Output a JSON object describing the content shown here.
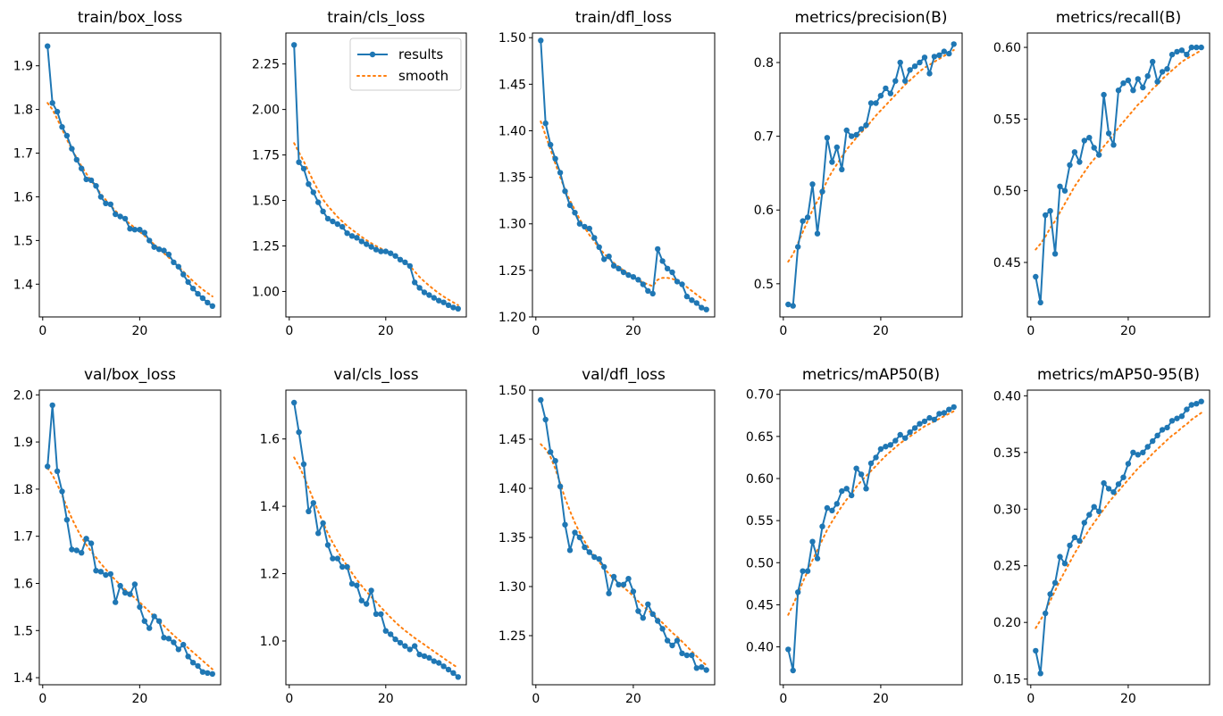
{
  "legend": {
    "results_label": "results",
    "smooth_label": "smooth",
    "placement": "upper right of train/cls_loss"
  },
  "colors": {
    "results": "#1f77b4",
    "smooth": "#ff7f0e",
    "axes": "#000000",
    "background": "#ffffff"
  },
  "x": [
    1,
    2,
    3,
    4,
    5,
    6,
    7,
    8,
    9,
    10,
    11,
    12,
    13,
    14,
    15,
    16,
    17,
    18,
    19,
    20,
    21,
    22,
    23,
    24,
    25,
    26,
    27,
    28,
    29,
    30,
    31,
    32,
    33,
    34,
    35
  ],
  "chart_data": [
    {
      "type": "line",
      "title": "train/box_loss",
      "xlim": [
        -0.7,
        36.7
      ],
      "ylim": [
        1.325,
        1.975
      ],
      "xticks": [
        0,
        20
      ],
      "yticks": [
        1.4,
        1.5,
        1.6,
        1.7,
        1.8,
        1.9
      ],
      "tick_decimals": 1,
      "grid": false,
      "legend": false,
      "series": [
        {
          "name": "results",
          "values": [
            1.945,
            1.815,
            1.795,
            1.76,
            1.74,
            1.71,
            1.685,
            1.665,
            1.64,
            1.638,
            1.625,
            1.6,
            1.585,
            1.583,
            1.56,
            1.555,
            1.55,
            1.527,
            1.525,
            1.525,
            1.518,
            1.5,
            1.485,
            1.48,
            1.477,
            1.468,
            1.45,
            1.44,
            1.422,
            1.405,
            1.39,
            1.378,
            1.368,
            1.358,
            1.35
          ]
        },
        {
          "name": "smooth",
          "values": [
            1.815,
            1.8,
            1.778,
            1.755,
            1.731,
            1.709,
            1.689,
            1.67,
            1.653,
            1.637,
            1.622,
            1.607,
            1.593,
            1.58,
            1.568,
            1.557,
            1.547,
            1.538,
            1.529,
            1.52,
            1.511,
            1.501,
            1.491,
            1.481,
            1.471,
            1.461,
            1.451,
            1.44,
            1.429,
            1.418,
            1.407,
            1.397,
            1.388,
            1.38,
            1.372
          ]
        }
      ]
    },
    {
      "type": "line",
      "title": "train/cls_loss",
      "xlim": [
        -0.7,
        36.7
      ],
      "ylim": [
        0.86,
        2.42
      ],
      "xticks": [
        0,
        20
      ],
      "yticks": [
        1.0,
        1.25,
        1.5,
        1.75,
        2.0,
        2.25
      ],
      "tick_decimals": 2,
      "grid": false,
      "legend": true,
      "series": [
        {
          "name": "results",
          "values": [
            2.355,
            1.71,
            1.675,
            1.59,
            1.545,
            1.49,
            1.44,
            1.4,
            1.385,
            1.37,
            1.355,
            1.32,
            1.305,
            1.295,
            1.275,
            1.26,
            1.245,
            1.23,
            1.22,
            1.22,
            1.21,
            1.195,
            1.175,
            1.16,
            1.14,
            1.05,
            1.02,
            0.995,
            0.98,
            0.965,
            0.95,
            0.94,
            0.925,
            0.912,
            0.905
          ]
        },
        {
          "name": "smooth",
          "values": [
            1.815,
            1.765,
            1.715,
            1.66,
            1.605,
            1.555,
            1.505,
            1.47,
            1.44,
            1.41,
            1.385,
            1.36,
            1.34,
            1.32,
            1.3,
            1.282,
            1.265,
            1.25,
            1.236,
            1.222,
            1.209,
            1.196,
            1.18,
            1.163,
            1.14,
            1.11,
            1.08,
            1.055,
            1.032,
            1.01,
            0.99,
            0.972,
            0.955,
            0.94,
            0.925
          ]
        }
      ]
    },
    {
      "type": "line",
      "title": "train/dfl_loss",
      "xlim": [
        -0.7,
        36.7
      ],
      "ylim": [
        1.2,
        1.505
      ],
      "xticks": [
        0,
        20
      ],
      "yticks": [
        1.2,
        1.25,
        1.3,
        1.35,
        1.4,
        1.45,
        1.5
      ],
      "tick_decimals": 2,
      "grid": false,
      "legend": false,
      "series": [
        {
          "name": "results",
          "values": [
            1.497,
            1.408,
            1.385,
            1.37,
            1.355,
            1.335,
            1.32,
            1.312,
            1.3,
            1.297,
            1.295,
            1.285,
            1.275,
            1.262,
            1.265,
            1.255,
            1.252,
            1.248,
            1.245,
            1.243,
            1.24,
            1.235,
            1.228,
            1.225,
            1.273,
            1.26,
            1.252,
            1.248,
            1.238,
            1.235,
            1.222,
            1.218,
            1.215,
            1.21,
            1.208
          ]
        },
        {
          "name": "smooth",
          "values": [
            1.41,
            1.395,
            1.38,
            1.365,
            1.35,
            1.337,
            1.325,
            1.315,
            1.305,
            1.296,
            1.288,
            1.281,
            1.274,
            1.268,
            1.263,
            1.258,
            1.254,
            1.25,
            1.246,
            1.243,
            1.24,
            1.237,
            1.235,
            1.233,
            1.24,
            1.242,
            1.242,
            1.241,
            1.239,
            1.236,
            1.232,
            1.228,
            1.224,
            1.22,
            1.217
          ]
        }
      ]
    },
    {
      "type": "line",
      "title": "metrics/precision(B)",
      "xlim": [
        -0.7,
        36.7
      ],
      "ylim": [
        0.455,
        0.84
      ],
      "xticks": [
        0,
        20
      ],
      "yticks": [
        0.5,
        0.6,
        0.7,
        0.8
      ],
      "tick_decimals": 1,
      "grid": false,
      "legend": false,
      "series": [
        {
          "name": "results",
          "values": [
            0.472,
            0.47,
            0.55,
            0.585,
            0.59,
            0.635,
            0.568,
            0.625,
            0.698,
            0.665,
            0.685,
            0.655,
            0.708,
            0.7,
            0.702,
            0.71,
            0.715,
            0.745,
            0.745,
            0.755,
            0.765,
            0.758,
            0.775,
            0.8,
            0.775,
            0.79,
            0.795,
            0.8,
            0.807,
            0.785,
            0.808,
            0.81,
            0.815,
            0.812,
            0.825
          ]
        },
        {
          "name": "smooth",
          "values": [
            0.53,
            0.54,
            0.555,
            0.57,
            0.585,
            0.6,
            0.612,
            0.625,
            0.64,
            0.652,
            0.662,
            0.672,
            0.682,
            0.69,
            0.698,
            0.705,
            0.712,
            0.72,
            0.728,
            0.735,
            0.742,
            0.749,
            0.756,
            0.763,
            0.77,
            0.776,
            0.782,
            0.788,
            0.793,
            0.797,
            0.801,
            0.805,
            0.809,
            0.813,
            0.817
          ]
        }
      ]
    },
    {
      "type": "line",
      "title": "metrics/recall(B)",
      "xlim": [
        -0.7,
        36.7
      ],
      "ylim": [
        0.412,
        0.61
      ],
      "xticks": [
        0,
        20
      ],
      "yticks": [
        0.45,
        0.5,
        0.55,
        0.6
      ],
      "tick_decimals": 2,
      "grid": false,
      "legend": false,
      "series": [
        {
          "name": "results",
          "values": [
            0.44,
            0.422,
            0.483,
            0.486,
            0.456,
            0.503,
            0.5,
            0.518,
            0.527,
            0.52,
            0.535,
            0.537,
            0.53,
            0.525,
            0.567,
            0.54,
            0.532,
            0.57,
            0.575,
            0.577,
            0.57,
            0.578,
            0.572,
            0.58,
            0.59,
            0.576,
            0.583,
            0.585,
            0.595,
            0.597,
            0.598,
            0.595,
            0.6,
            0.6,
            0.6
          ]
        },
        {
          "name": "smooth",
          "values": [
            0.459,
            0.463,
            0.468,
            0.474,
            0.479,
            0.485,
            0.491,
            0.497,
            0.503,
            0.508,
            0.513,
            0.518,
            0.522,
            0.526,
            0.531,
            0.535,
            0.539,
            0.544,
            0.548,
            0.552,
            0.556,
            0.56,
            0.563,
            0.567,
            0.571,
            0.574,
            0.578,
            0.581,
            0.584,
            0.587,
            0.59,
            0.592,
            0.594,
            0.596,
            0.598
          ]
        }
      ]
    },
    {
      "type": "line",
      "title": "val/box_loss",
      "xlim": [
        -0.7,
        36.7
      ],
      "ylim": [
        1.385,
        2.01
      ],
      "xticks": [
        0,
        20
      ],
      "yticks": [
        1.4,
        1.5,
        1.6,
        1.7,
        1.8,
        1.9,
        2.0
      ],
      "tick_decimals": 1,
      "grid": false,
      "legend": false,
      "series": [
        {
          "name": "results",
          "values": [
            1.848,
            1.978,
            1.838,
            1.795,
            1.735,
            1.672,
            1.67,
            1.665,
            1.695,
            1.685,
            1.627,
            1.625,
            1.618,
            1.62,
            1.56,
            1.595,
            1.58,
            1.577,
            1.598,
            1.55,
            1.52,
            1.505,
            1.53,
            1.52,
            1.485,
            1.483,
            1.475,
            1.46,
            1.47,
            1.445,
            1.432,
            1.425,
            1.412,
            1.41,
            1.408
          ]
        },
        {
          "name": "smooth",
          "values": [
            1.845,
            1.83,
            1.81,
            1.787,
            1.762,
            1.738,
            1.717,
            1.698,
            1.682,
            1.668,
            1.655,
            1.642,
            1.63,
            1.618,
            1.607,
            1.597,
            1.587,
            1.578,
            1.569,
            1.56,
            1.55,
            1.54,
            1.53,
            1.52,
            1.51,
            1.5,
            1.49,
            1.481,
            1.472,
            1.463,
            1.454,
            1.445,
            1.436,
            1.427,
            1.418
          ]
        }
      ]
    },
    {
      "type": "line",
      "title": "val/cls_loss",
      "xlim": [
        -0.7,
        36.7
      ],
      "ylim": [
        0.87,
        1.745
      ],
      "xticks": [
        0,
        20
      ],
      "yticks": [
        1.0,
        1.2,
        1.4,
        1.6
      ],
      "tick_decimals": 1,
      "grid": false,
      "legend": false,
      "series": [
        {
          "name": "results",
          "values": [
            1.708,
            1.62,
            1.525,
            1.385,
            1.41,
            1.32,
            1.35,
            1.285,
            1.245,
            1.245,
            1.22,
            1.22,
            1.17,
            1.165,
            1.12,
            1.11,
            1.15,
            1.08,
            1.08,
            1.03,
            1.02,
            1.005,
            0.995,
            0.985,
            0.975,
            0.985,
            0.96,
            0.955,
            0.95,
            0.94,
            0.935,
            0.925,
            0.915,
            0.905,
            0.893
          ]
        },
        {
          "name": "smooth",
          "values": [
            1.545,
            1.52,
            1.49,
            1.455,
            1.42,
            1.385,
            1.352,
            1.32,
            1.292,
            1.267,
            1.244,
            1.223,
            1.202,
            1.182,
            1.164,
            1.147,
            1.131,
            1.116,
            1.1,
            1.085,
            1.07,
            1.056,
            1.043,
            1.031,
            1.02,
            1.009,
            0.999,
            0.989,
            0.979,
            0.969,
            0.959,
            0.949,
            0.939,
            0.929,
            0.92
          ]
        }
      ]
    },
    {
      "type": "line",
      "title": "val/dfl_loss",
      "xlim": [
        -0.7,
        36.7
      ],
      "ylim": [
        1.2,
        1.5
      ],
      "xticks": [
        0,
        20
      ],
      "yticks": [
        1.25,
        1.3,
        1.35,
        1.4,
        1.45,
        1.5
      ],
      "tick_decimals": 2,
      "grid": false,
      "legend": false,
      "series": [
        {
          "name": "results",
          "values": [
            1.49,
            1.47,
            1.437,
            1.428,
            1.402,
            1.363,
            1.337,
            1.355,
            1.35,
            1.34,
            1.335,
            1.33,
            1.328,
            1.32,
            1.293,
            1.31,
            1.302,
            1.302,
            1.308,
            1.295,
            1.275,
            1.268,
            1.282,
            1.272,
            1.265,
            1.257,
            1.245,
            1.24,
            1.245,
            1.232,
            1.23,
            1.23,
            1.217,
            1.218,
            1.215
          ]
        },
        {
          "name": "smooth",
          "values": [
            1.445,
            1.44,
            1.432,
            1.42,
            1.405,
            1.39,
            1.377,
            1.365,
            1.355,
            1.346,
            1.338,
            1.331,
            1.325,
            1.319,
            1.313,
            1.308,
            1.303,
            1.299,
            1.295,
            1.29,
            1.285,
            1.28,
            1.276,
            1.272,
            1.268,
            1.263,
            1.258,
            1.253,
            1.249,
            1.244,
            1.239,
            1.234,
            1.229,
            1.224,
            1.22
          ]
        }
      ]
    },
    {
      "type": "line",
      "title": "metrics/mAP50(B)",
      "xlim": [
        -0.7,
        36.7
      ],
      "ylim": [
        0.355,
        0.705
      ],
      "xticks": [
        0,
        20
      ],
      "yticks": [
        0.4,
        0.45,
        0.5,
        0.55,
        0.6,
        0.65,
        0.7
      ],
      "tick_decimals": 2,
      "grid": false,
      "legend": false,
      "series": [
        {
          "name": "results",
          "values": [
            0.397,
            0.372,
            0.465,
            0.49,
            0.49,
            0.525,
            0.505,
            0.543,
            0.565,
            0.562,
            0.57,
            0.585,
            0.588,
            0.58,
            0.612,
            0.605,
            0.588,
            0.618,
            0.625,
            0.635,
            0.638,
            0.64,
            0.645,
            0.652,
            0.648,
            0.655,
            0.66,
            0.665,
            0.668,
            0.672,
            0.67,
            0.677,
            0.678,
            0.682,
            0.685
          ]
        },
        {
          "name": "smooth",
          "values": [
            0.438,
            0.45,
            0.463,
            0.477,
            0.49,
            0.503,
            0.515,
            0.527,
            0.539,
            0.549,
            0.558,
            0.567,
            0.575,
            0.582,
            0.59,
            0.597,
            0.603,
            0.609,
            0.615,
            0.621,
            0.627,
            0.632,
            0.637,
            0.642,
            0.646,
            0.65,
            0.654,
            0.658,
            0.662,
            0.665,
            0.668,
            0.671,
            0.674,
            0.677,
            0.68
          ]
        }
      ]
    },
    {
      "type": "line",
      "title": "metrics/mAP50-95(B)",
      "xlim": [
        -0.7,
        36.7
      ],
      "ylim": [
        0.145,
        0.405
      ],
      "xticks": [
        0,
        20
      ],
      "yticks": [
        0.15,
        0.2,
        0.25,
        0.3,
        0.35,
        0.4
      ],
      "tick_decimals": 2,
      "grid": false,
      "legend": false,
      "series": [
        {
          "name": "results",
          "values": [
            0.175,
            0.155,
            0.208,
            0.225,
            0.235,
            0.258,
            0.252,
            0.268,
            0.275,
            0.272,
            0.288,
            0.295,
            0.302,
            0.298,
            0.323,
            0.318,
            0.315,
            0.322,
            0.328,
            0.34,
            0.35,
            0.348,
            0.35,
            0.355,
            0.36,
            0.365,
            0.37,
            0.372,
            0.378,
            0.38,
            0.382,
            0.388,
            0.392,
            0.393,
            0.395
          ]
        },
        {
          "name": "smooth",
          "values": [
            0.195,
            0.202,
            0.21,
            0.219,
            0.228,
            0.237,
            0.245,
            0.253,
            0.261,
            0.268,
            0.275,
            0.282,
            0.288,
            0.294,
            0.3,
            0.306,
            0.311,
            0.316,
            0.321,
            0.326,
            0.331,
            0.336,
            0.34,
            0.344,
            0.349,
            0.353,
            0.357,
            0.361,
            0.365,
            0.368,
            0.372,
            0.375,
            0.379,
            0.382,
            0.385
          ]
        }
      ]
    }
  ]
}
